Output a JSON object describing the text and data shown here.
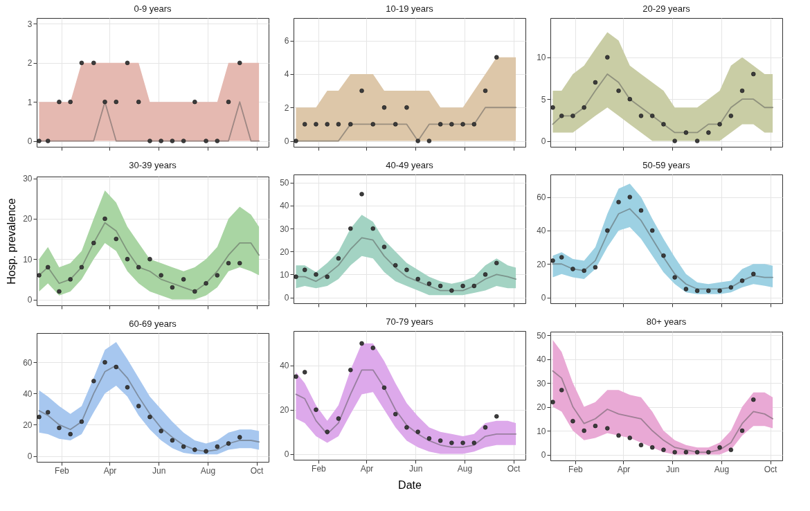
{
  "chart_data": [
    {
      "type": "line",
      "title": "0-9 years",
      "tick_labels": "y",
      "grid": true,
      "x": [
        "--01-04",
        "--01-15",
        "--01-29",
        "--02-12",
        "--02-26",
        "--03-12",
        "--03-26",
        "--04-09",
        "--04-23",
        "--05-07",
        "--05-21",
        "--06-04",
        "--06-18",
        "--07-02",
        "--07-16",
        "--07-30",
        "--08-13",
        "--08-27",
        "--09-10",
        "--09-24",
        "--10-04"
      ],
      "xlim": [
        "--01-01",
        "--10-16"
      ],
      "xticks": [
        {
          "value": "--02-01",
          "label": null
        },
        {
          "value": "--04-01",
          "label": null
        },
        {
          "value": "--06-01",
          "label": null
        },
        {
          "value": "--08-01",
          "label": null
        },
        {
          "value": "--10-01",
          "label": null
        }
      ],
      "ylim": [
        -0.15,
        3.15
      ],
      "yticks": [
        0,
        1,
        2,
        3
      ],
      "series": [
        {
          "color": "#9d8783",
          "values": [
            0,
            0,
            0,
            0,
            0,
            0,
            1,
            0,
            0,
            0,
            0,
            0,
            0,
            0,
            0,
            0,
            0,
            0,
            1,
            0,
            0
          ],
          "lower": [
            0,
            0,
            0,
            0,
            0,
            0,
            0,
            0,
            0,
            0,
            0,
            0,
            0,
            0,
            0,
            0,
            0,
            0,
            0,
            0,
            0
          ],
          "upper": [
            1,
            1,
            1,
            1,
            2,
            2,
            2,
            2,
            2,
            2,
            1,
            1,
            1,
            1,
            1,
            1,
            1,
            2,
            2,
            2,
            2
          ]
        },
        {
          "type": "scatter",
          "color": "#3c3c3c",
          "values": [
            0,
            0,
            1,
            1,
            2,
            2,
            1,
            1,
            2,
            1,
            0,
            0,
            0,
            0,
            1,
            0,
            0,
            1,
            2,
            null,
            null
          ]
        }
      ]
    },
    {
      "type": "line",
      "title": "10-19 years",
      "tick_labels": "y",
      "grid": true,
      "x": [
        "--01-04",
        "--01-15",
        "--01-29",
        "--02-12",
        "--02-26",
        "--03-12",
        "--03-26",
        "--04-09",
        "--04-23",
        "--05-07",
        "--05-21",
        "--06-04",
        "--06-18",
        "--07-02",
        "--07-16",
        "--07-30",
        "--08-13",
        "--08-27",
        "--09-10",
        "--09-24",
        "--10-04"
      ],
      "xlim": [
        "--01-01",
        "--10-16"
      ],
      "xticks": [
        {
          "value": "--02-01",
          "label": null
        },
        {
          "value": "--04-01",
          "label": null
        },
        {
          "value": "--06-01",
          "label": null
        },
        {
          "value": "--08-01",
          "label": null
        },
        {
          "value": "--10-01",
          "label": null
        }
      ],
      "ylim": [
        -0.35,
        7.35
      ],
      "yticks": [
        0,
        2,
        4,
        6
      ],
      "series": [
        {
          "color": "#998e7f",
          "values": [
            0,
            0,
            0,
            0,
            0,
            1,
            1,
            1,
            1,
            1,
            1,
            0,
            1,
            1,
            1,
            1,
            1,
            2,
            2,
            2,
            2
          ],
          "lower": [
            0,
            0,
            0,
            0,
            0,
            0,
            0,
            0,
            0,
            0,
            0,
            0,
            0,
            0,
            0,
            0,
            0,
            0,
            0,
            0,
            0
          ],
          "upper": [
            2,
            2,
            2,
            3,
            3,
            4,
            4,
            4,
            3,
            3,
            3,
            3,
            3,
            2,
            2,
            2,
            3,
            4,
            5,
            5,
            5
          ]
        },
        {
          "type": "scatter",
          "color": "#3c3c3c",
          "values": [
            0,
            1,
            1,
            1,
            1,
            1,
            3,
            1,
            2,
            1,
            2,
            0,
            0,
            1,
            1,
            1,
            1,
            3,
            5,
            null,
            null
          ]
        }
      ]
    },
    {
      "type": "line",
      "title": "20-29 years",
      "tick_labels": "y",
      "grid": true,
      "x": [
        "--01-04",
        "--01-15",
        "--01-29",
        "--02-12",
        "--02-26",
        "--03-12",
        "--03-26",
        "--04-09",
        "--04-23",
        "--05-07",
        "--05-21",
        "--06-04",
        "--06-18",
        "--07-02",
        "--07-16",
        "--07-30",
        "--08-13",
        "--08-27",
        "--09-10",
        "--09-24",
        "--10-04"
      ],
      "xlim": [
        "--01-01",
        "--10-16"
      ],
      "xticks": [
        {
          "value": "--02-01",
          "label": null
        },
        {
          "value": "--04-01",
          "label": null
        },
        {
          "value": "--06-01",
          "label": null
        },
        {
          "value": "--08-01",
          "label": null
        },
        {
          "value": "--10-01",
          "label": null
        }
      ],
      "ylim": [
        -0.7,
        14.7
      ],
      "yticks": [
        0,
        5,
        10
      ],
      "series": [
        {
          "color": "#8f917d",
          "values": [
            2,
            3,
            3,
            4,
            6,
            8,
            7,
            5,
            4,
            3,
            2,
            1,
            1,
            1,
            2,
            2,
            4,
            5,
            5,
            4,
            4
          ],
          "lower": [
            1,
            1,
            1,
            2,
            3,
            4,
            3,
            2,
            1,
            0,
            0,
            0,
            0,
            0,
            0,
            0,
            1,
            2,
            2,
            1,
            1
          ],
          "upper": [
            6,
            6,
            8,
            9,
            11,
            13,
            12,
            9,
            8,
            7,
            6,
            4,
            4,
            4,
            5,
            6,
            9,
            10,
            9,
            8,
            8
          ]
        },
        {
          "type": "scatter",
          "color": "#3c3c3c",
          "values": [
            4,
            3,
            3,
            4,
            7,
            10,
            6,
            5,
            3,
            3,
            2,
            0,
            1,
            0,
            1,
            2,
            3,
            6,
            8,
            null,
            null
          ]
        }
      ]
    },
    {
      "type": "line",
      "title": "30-39 years",
      "ylabel": "Hosp. prevalence",
      "tick_labels": "y",
      "grid": true,
      "x": [
        "--01-04",
        "--01-15",
        "--01-29",
        "--02-12",
        "--02-26",
        "--03-12",
        "--03-26",
        "--04-09",
        "--04-23",
        "--05-07",
        "--05-21",
        "--06-04",
        "--06-18",
        "--07-02",
        "--07-16",
        "--07-30",
        "--08-13",
        "--08-27",
        "--09-10",
        "--09-24",
        "--10-04"
      ],
      "xlim": [
        "--01-01",
        "--10-16"
      ],
      "xticks": [
        {
          "value": "--02-01",
          "label": null
        },
        {
          "value": "--04-01",
          "label": null
        },
        {
          "value": "--06-01",
          "label": null
        },
        {
          "value": "--08-01",
          "label": null
        },
        {
          "value": "--10-01",
          "label": null
        }
      ],
      "ylim": [
        -1.45,
        30.45
      ],
      "yticks": [
        0,
        10,
        20,
        30
      ],
      "series": [
        {
          "color": "#7f957c",
          "values": [
            6,
            8,
            4,
            5,
            8,
            14,
            19,
            17,
            12,
            8,
            7,
            5,
            4,
            3,
            2,
            4,
            7,
            11,
            14,
            14,
            11
          ],
          "lower": [
            2,
            4,
            1,
            2,
            5,
            10,
            14,
            12,
            7,
            4,
            2,
            1,
            0,
            0,
            0,
            1,
            3,
            7,
            8,
            7,
            6
          ],
          "upper": [
            10,
            13,
            8,
            9,
            12,
            20,
            27,
            24,
            18,
            14,
            10,
            9,
            8,
            7,
            8,
            10,
            13,
            20,
            23,
            21,
            18
          ]
        },
        {
          "type": "scatter",
          "color": "#3c3c3c",
          "values": [
            6,
            8,
            2,
            5,
            8,
            14,
            20,
            15,
            10,
            8,
            10,
            6,
            3,
            5,
            2,
            4,
            6,
            9,
            9,
            null,
            null
          ]
        }
      ]
    },
    {
      "type": "line",
      "title": "40-49 years",
      "tick_labels": "y",
      "grid": true,
      "x": [
        "--01-04",
        "--01-15",
        "--01-29",
        "--02-12",
        "--02-26",
        "--03-12",
        "--03-26",
        "--04-09",
        "--04-23",
        "--05-07",
        "--05-21",
        "--06-04",
        "--06-18",
        "--07-02",
        "--07-16",
        "--07-30",
        "--08-13",
        "--08-27",
        "--09-10",
        "--09-24",
        "--10-04"
      ],
      "xlim": [
        "--01-01",
        "--10-16"
      ],
      "xticks": [
        {
          "value": "--02-01",
          "label": null
        },
        {
          "value": "--04-01",
          "label": null
        },
        {
          "value": "--06-01",
          "label": null
        },
        {
          "value": "--08-01",
          "label": null
        },
        {
          "value": "--10-01",
          "label": null
        }
      ],
      "ylim": [
        -2.55,
        53.55
      ],
      "yticks": [
        0,
        10,
        20,
        30,
        40,
        50
      ],
      "series": [
        {
          "color": "#7c948c",
          "values": [
            9,
            9,
            7,
            10,
            14,
            21,
            26,
            25,
            18,
            13,
            9,
            7,
            5,
            3,
            3,
            3,
            5,
            8,
            10,
            9,
            8
          ],
          "lower": [
            4,
            5,
            4,
            5,
            8,
            14,
            18,
            17,
            11,
            7,
            5,
            3,
            1,
            1,
            1,
            1,
            2,
            3,
            5,
            4,
            4
          ],
          "upper": [
            14,
            14,
            11,
            15,
            20,
            30,
            36,
            33,
            25,
            20,
            15,
            12,
            9,
            7,
            6,
            7,
            9,
            14,
            17,
            14,
            13
          ]
        },
        {
          "type": "scatter",
          "color": "#3c3c3c",
          "values": [
            9,
            12,
            10,
            9,
            17,
            30,
            45,
            30,
            22,
            14,
            12,
            8,
            6,
            5,
            3,
            5,
            5,
            10,
            15,
            null,
            null
          ]
        }
      ]
    },
    {
      "type": "line",
      "title": "50-59 years",
      "tick_labels": "y",
      "grid": true,
      "x": [
        "--01-04",
        "--01-15",
        "--01-29",
        "--02-12",
        "--02-26",
        "--03-12",
        "--03-26",
        "--04-09",
        "--04-23",
        "--05-07",
        "--05-21",
        "--06-04",
        "--06-18",
        "--07-02",
        "--07-16",
        "--07-30",
        "--08-13",
        "--08-27",
        "--09-10",
        "--09-24",
        "--10-04"
      ],
      "xlim": [
        "--01-01",
        "--10-16"
      ],
      "xticks": [
        {
          "value": "--02-01",
          "label": null
        },
        {
          "value": "--04-01",
          "label": null
        },
        {
          "value": "--06-01",
          "label": null
        },
        {
          "value": "--08-01",
          "label": null
        },
        {
          "value": "--10-01",
          "label": null
        }
      ],
      "ylim": [
        -3.5,
        73.5
      ],
      "yticks": [
        0,
        20,
        40,
        60
      ],
      "series": [
        {
          "color": "#79939c",
          "values": [
            20,
            20,
            17,
            16,
            22,
            38,
            50,
            53,
            46,
            35,
            24,
            14,
            8,
            5,
            5,
            5,
            6,
            10,
            13,
            12,
            12
          ],
          "lower": [
            12,
            14,
            12,
            11,
            17,
            30,
            40,
            42,
            35,
            25,
            15,
            8,
            3,
            2,
            2,
            2,
            3,
            6,
            8,
            7,
            6
          ],
          "upper": [
            25,
            27,
            23,
            22,
            30,
            50,
            65,
            68,
            60,
            47,
            35,
            24,
            14,
            9,
            8,
            9,
            10,
            17,
            20,
            20,
            19
          ]
        },
        {
          "type": "scatter",
          "color": "#3c3c3c",
          "values": [
            22,
            24,
            17,
            16,
            18,
            40,
            57,
            60,
            52,
            40,
            25,
            12,
            5,
            4,
            4,
            4,
            6,
            10,
            14,
            null,
            null
          ]
        }
      ]
    },
    {
      "type": "line",
      "title": "60-69 years",
      "grid": true,
      "x": [
        "--01-04",
        "--01-15",
        "--01-29",
        "--02-12",
        "--02-26",
        "--03-12",
        "--03-26",
        "--04-09",
        "--04-23",
        "--05-07",
        "--05-21",
        "--06-04",
        "--06-18",
        "--07-02",
        "--07-16",
        "--07-30",
        "--08-13",
        "--08-27",
        "--09-10",
        "--09-24",
        "--10-04"
      ],
      "xlim": [
        "--01-01",
        "--10-16"
      ],
      "xticks": [
        {
          "value": "--02-01",
          "label": "Feb"
        },
        {
          "value": "--04-01",
          "label": "Apr"
        },
        {
          "value": "--06-01",
          "label": "Jun"
        },
        {
          "value": "--08-01",
          "label": "Aug"
        },
        {
          "value": "--10-01",
          "label": "Oct"
        }
      ],
      "ylim": [
        -3.75,
        78.75
      ],
      "yticks": [
        0,
        20,
        40,
        60
      ],
      "series": [
        {
          "color": "#7e8ea2",
          "values": [
            29,
            26,
            20,
            17,
            22,
            40,
            54,
            58,
            50,
            38,
            27,
            18,
            12,
            7,
            4,
            3,
            4,
            8,
            10,
            10,
            9
          ],
          "lower": [
            15,
            14,
            11,
            10,
            14,
            28,
            40,
            45,
            38,
            26,
            17,
            10,
            5,
            2,
            1,
            1,
            1,
            4,
            5,
            5,
            4
          ],
          "upper": [
            42,
            38,
            32,
            27,
            32,
            50,
            68,
            73,
            62,
            50,
            38,
            30,
            22,
            15,
            10,
            8,
            10,
            15,
            17,
            17,
            16
          ]
        },
        {
          "type": "scatter",
          "color": "#3c3c3c",
          "values": [
            25,
            28,
            18,
            14,
            22,
            48,
            60,
            57,
            44,
            32,
            25,
            16,
            10,
            6,
            4,
            3,
            6,
            8,
            12,
            null,
            null
          ]
        }
      ]
    },
    {
      "type": "line",
      "title": "70-79 years",
      "xlabel": "Date",
      "grid": true,
      "x": [
        "--01-04",
        "--01-15",
        "--01-29",
        "--02-12",
        "--02-26",
        "--03-12",
        "--03-26",
        "--04-09",
        "--04-23",
        "--05-07",
        "--05-21",
        "--06-04",
        "--06-18",
        "--07-02",
        "--07-16",
        "--07-30",
        "--08-13",
        "--08-27",
        "--09-10",
        "--09-24",
        "--10-04"
      ],
      "xlim": [
        "--01-01",
        "--10-16"
      ],
      "xticks": [
        {
          "value": "--02-01",
          "label": "Feb"
        },
        {
          "value": "--04-01",
          "label": "Apr"
        },
        {
          "value": "--06-01",
          "label": "Jun"
        },
        {
          "value": "--08-01",
          "label": "Aug"
        },
        {
          "value": "--10-01",
          "label": "Oct"
        }
      ],
      "ylim": [
        -2.65,
        55.65
      ],
      "yticks": [
        0,
        20,
        40
      ],
      "series": [
        {
          "color": "#997fa0",
          "values": [
            27,
            25,
            15,
            9,
            14,
            27,
            38,
            38,
            30,
            20,
            13,
            9,
            6,
            4,
            3,
            3,
            4,
            8,
            9,
            9,
            9
          ],
          "lower": [
            16,
            14,
            8,
            5,
            8,
            18,
            27,
            28,
            20,
            12,
            6,
            3,
            1,
            0,
            0,
            0,
            1,
            3,
            4,
            4,
            4
          ],
          "upper": [
            37,
            32,
            22,
            15,
            22,
            38,
            50,
            50,
            42,
            32,
            23,
            17,
            12,
            10,
            9,
            8,
            9,
            14,
            15,
            15,
            14
          ]
        },
        {
          "type": "scatter",
          "color": "#3c3c3c",
          "values": [
            35,
            37,
            20,
            10,
            16,
            38,
            50,
            48,
            30,
            18,
            12,
            10,
            7,
            6,
            5,
            5,
            5,
            12,
            17,
            null,
            null
          ]
        }
      ]
    },
    {
      "type": "line",
      "title": "80+ years",
      "grid": true,
      "x": [
        "--01-04",
        "--01-15",
        "--01-29",
        "--02-12",
        "--02-26",
        "--03-12",
        "--03-26",
        "--04-09",
        "--04-23",
        "--05-07",
        "--05-21",
        "--06-04",
        "--06-18",
        "--07-02",
        "--07-16",
        "--07-30",
        "--08-13",
        "--08-27",
        "--09-10",
        "--09-24",
        "--10-04"
      ],
      "xlim": [
        "--01-01",
        "--10-16"
      ],
      "xticks": [
        {
          "value": "--02-01",
          "label": "Feb"
        },
        {
          "value": "--04-01",
          "label": "Apr"
        },
        {
          "value": "--06-01",
          "label": "Jun"
        },
        {
          "value": "--08-01",
          "label": "Aug"
        },
        {
          "value": "--10-01",
          "label": "Oct"
        }
      ],
      "ylim": [
        -2.45,
        51.45
      ],
      "yticks": [
        0,
        10,
        20,
        30,
        40,
        50
      ],
      "series": [
        {
          "color": "#9f7f95",
          "values": [
            35,
            32,
            20,
            13,
            15,
            19,
            17,
            16,
            15,
            10,
            6,
            3,
            2,
            1,
            1,
            2,
            5,
            13,
            18,
            17,
            15
          ],
          "lower": [
            20,
            18,
            10,
            6,
            7,
            9,
            8,
            7,
            5,
            3,
            1,
            0,
            0,
            0,
            0,
            0,
            2,
            8,
            12,
            12,
            11
          ],
          "upper": [
            48,
            43,
            30,
            20,
            22,
            27,
            27,
            25,
            24,
            18,
            10,
            6,
            4,
            3,
            3,
            5,
            10,
            20,
            26,
            26,
            24
          ]
        },
        {
          "type": "scatter",
          "color": "#3c3c3c",
          "values": [
            22,
            27,
            14,
            10,
            12,
            11,
            8,
            7,
            4,
            3,
            2,
            1,
            1,
            1,
            1,
            3,
            2,
            10,
            23,
            null,
            null
          ]
        }
      ]
    }
  ]
}
